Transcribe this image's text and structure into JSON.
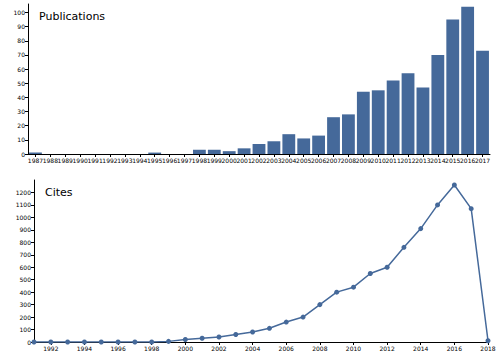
{
  "chart_data": [
    {
      "type": "bar",
      "title": "Publications",
      "categories": [
        "1987",
        "1988",
        "1989",
        "1990",
        "1991",
        "1992",
        "1993",
        "1994",
        "1995",
        "1996",
        "1997",
        "1998",
        "1999",
        "2000",
        "2001",
        "2002",
        "2003",
        "2004",
        "2005",
        "2006",
        "2007",
        "2008",
        "2009",
        "2010",
        "2011",
        "2012",
        "2013",
        "2014",
        "2015",
        "2016",
        "2017"
      ],
      "values": [
        1,
        0,
        0,
        0,
        0,
        0,
        0,
        0,
        1,
        0,
        0,
        3,
        3,
        2,
        4,
        7,
        9,
        14,
        11,
        13,
        26,
        28,
        44,
        45,
        52,
        57,
        47,
        70,
        95,
        104,
        73
      ],
      "color": "#45699a",
      "ylim": [
        0,
        106
      ],
      "yticks": [
        0,
        10,
        20,
        30,
        40,
        50,
        60,
        70,
        80,
        90,
        100
      ],
      "grid": false
    },
    {
      "type": "line",
      "title": "Cites",
      "x": [
        1991,
        1992,
        1993,
        1994,
        1995,
        1996,
        1997,
        1998,
        1999,
        2000,
        2001,
        2002,
        2003,
        2004,
        2005,
        2006,
        2007,
        2008,
        2009,
        2010,
        2011,
        2012,
        2013,
        2014,
        2015,
        2016,
        2017,
        2018
      ],
      "values": [
        0,
        0,
        0,
        0,
        0,
        0,
        0,
        0,
        5,
        20,
        30,
        40,
        60,
        80,
        110,
        160,
        200,
        300,
        400,
        440,
        550,
        600,
        760,
        910,
        1100,
        1260,
        1070,
        10
      ],
      "color": "#45699a",
      "marker": "circle",
      "xlim": [
        1991,
        2018
      ],
      "xticks": [
        1992,
        1994,
        1996,
        1998,
        2000,
        2002,
        2004,
        2006,
        2008,
        2010,
        2012,
        2014,
        2016,
        2018
      ],
      "ylim": [
        0,
        1300
      ],
      "yticks": [
        0,
        100,
        200,
        300,
        400,
        500,
        600,
        700,
        800,
        900,
        1000,
        1100,
        1200
      ],
      "grid": false
    }
  ]
}
